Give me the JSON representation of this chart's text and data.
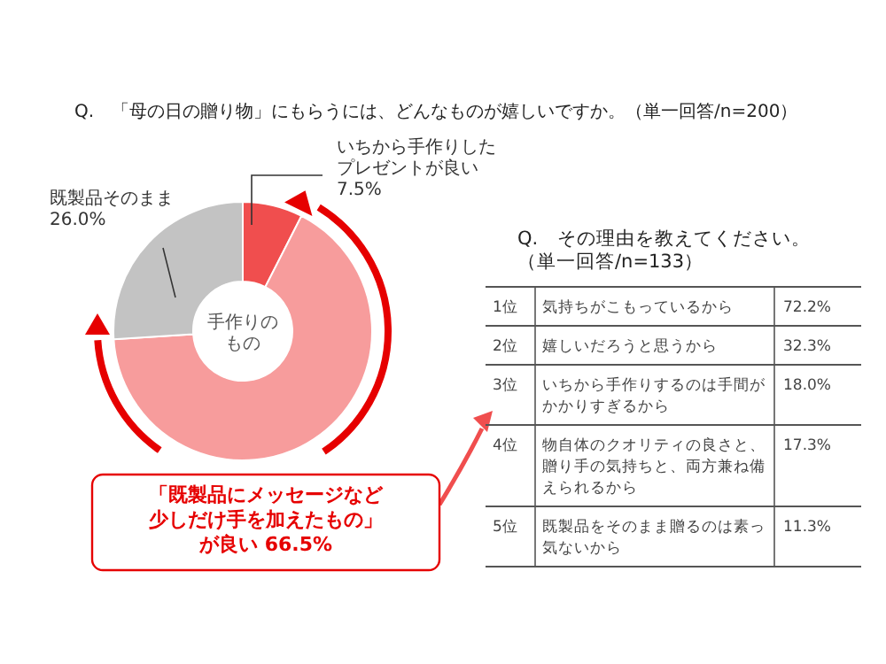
{
  "chart_data": [
    {
      "type": "donut",
      "title": "Q.　「母の日の贈り物」にもらうには、どんなものが嬉しいですか。（単一回答/n=200）",
      "categories": [
        "いちから手作りしたプレゼントが良い",
        "「既製品にメッセージなど少しだけ手を加えたもの」が良い",
        "既製品そのまま"
      ],
      "values": [
        7.5,
        66.5,
        26.0
      ],
      "colors": [
        "#f04e4e",
        "#f79c9c",
        "#c3c3c3"
      ],
      "value_labels": [
        "7.5%",
        "66.5%",
        "26.0%"
      ],
      "annotations": [
        "手作りのもの"
      ]
    },
    {
      "type": "other",
      "title": "Q.　その理由を教えてください。（単一回答/n=133）",
      "annotations": [
        "1位",
        "2位",
        "3位",
        "4位",
        "5位"
      ],
      "values": [
        72.2,
        32.3,
        18.0,
        17.3,
        11.3
      ],
      "categories": [
        "気持ちがこもっているから",
        "嬉しいだろうと思うから",
        "いちから手作りするのは手間がかかりすぎるから",
        "物自体のクオリティの良さと、贈り手の気持ちと、両方兼ね備えられるから",
        "既製品をそのまま贈るのは素っ気ないから"
      ],
      "value_labels": [
        "72.2%",
        "32.3%",
        "18.0%",
        "17.3%",
        "11.3%"
      ]
    }
  ]
}
